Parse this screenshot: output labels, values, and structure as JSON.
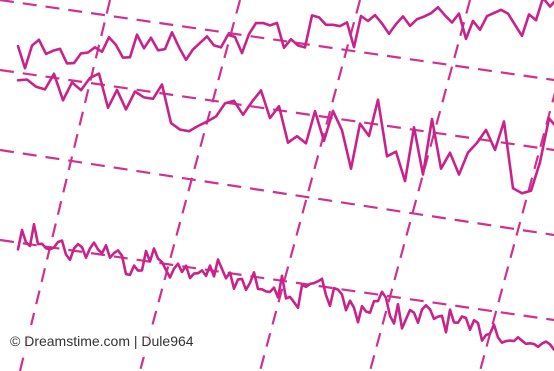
{
  "watermark": {
    "text": "© Dreamstime.com | Dule964"
  }
}
